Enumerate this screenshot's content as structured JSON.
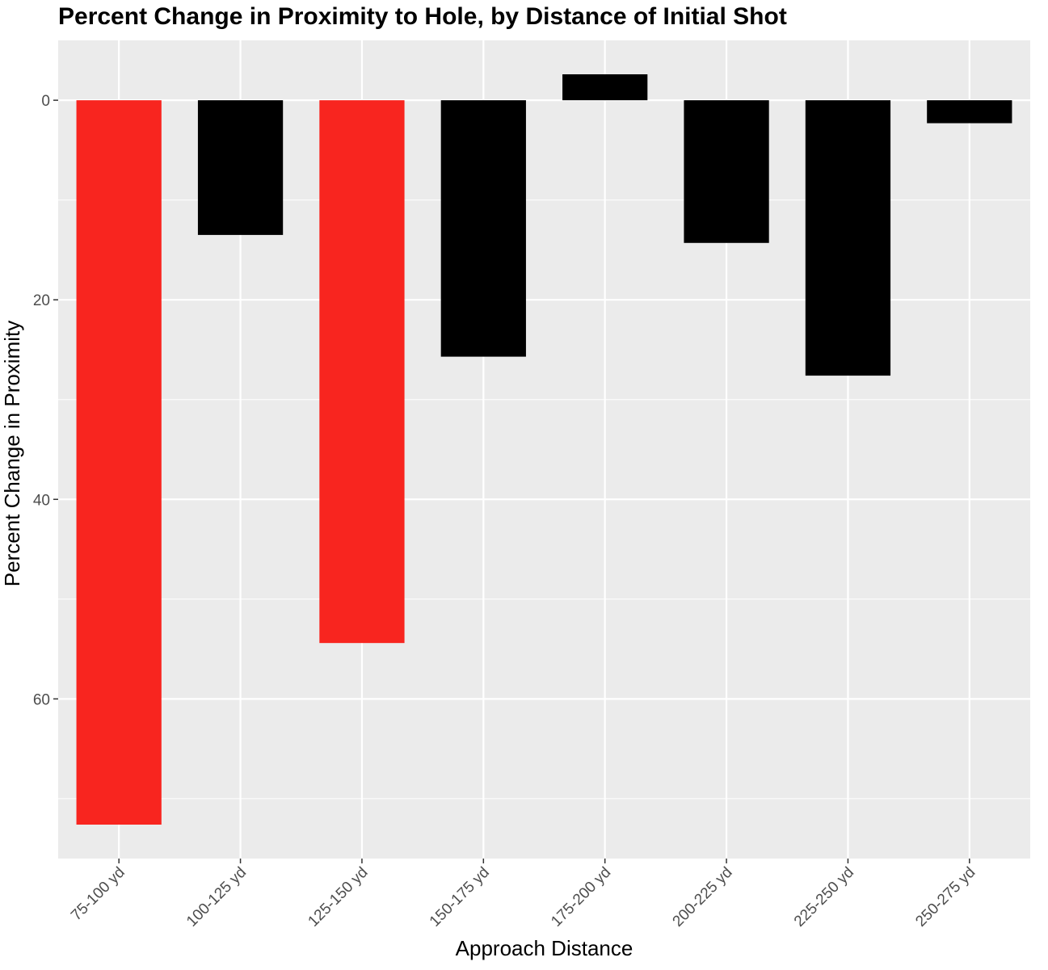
{
  "chart_data": {
    "type": "bar",
    "title": "Percent Change in Proximity to Hole, by Distance of Initial Shot",
    "xlabel": "Approach Distance",
    "ylabel": "Percent Change in Proximity",
    "categories": [
      "75-100 yd",
      "100-125 yd",
      "125-150 yd",
      "150-175 yd",
      "175-200 yd",
      "200-225 yd",
      "225-250 yd",
      "250-275 yd"
    ],
    "values": [
      72.6,
      13.5,
      54.4,
      25.7,
      -2.6,
      14.3,
      27.6,
      2.3
    ],
    "colors": [
      "#f8251f",
      "#000000",
      "#f8251f",
      "#000000",
      "#000000",
      "#000000",
      "#000000",
      "#000000"
    ],
    "y_axis": "reversed",
    "yticks": [
      0,
      20,
      40,
      60
    ],
    "ylim": [
      -6,
      76
    ],
    "grid": true,
    "panel_background": "#ebebeb",
    "grid_color": "#ffffff"
  }
}
